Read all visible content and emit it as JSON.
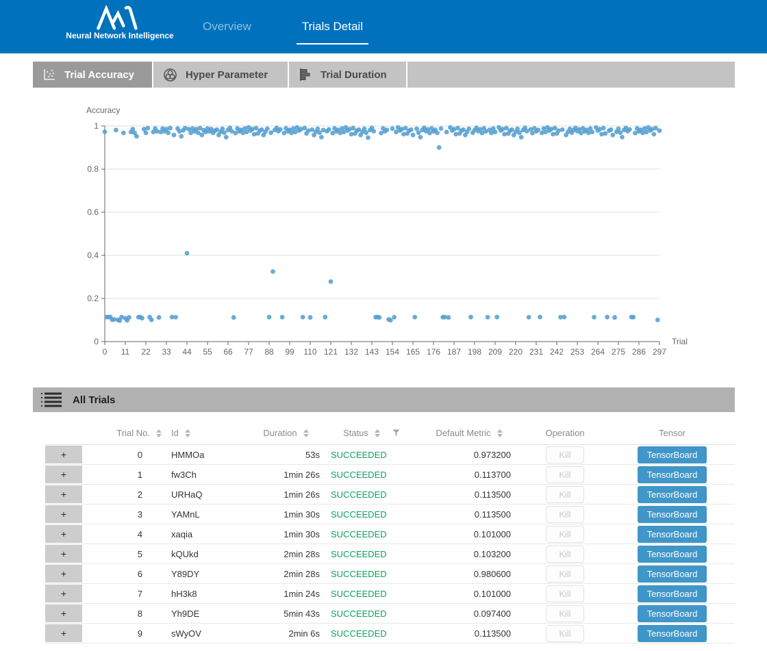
{
  "colors": {
    "header_blue": "#0071bc",
    "active_tab": "#9a9a9a",
    "inactive_tab": "#c3c3c3",
    "section_bar": "#b1b1b1",
    "point_blue": "#559fd0",
    "succeeded_green": "#0fa05c",
    "tensorboard_blue": "#4096c8"
  },
  "header": {
    "brand_subtitle": "Neural Network Intelligence",
    "nav": [
      {
        "label": "Overview",
        "active": false
      },
      {
        "label": "Trials Detail",
        "active": true
      }
    ]
  },
  "tabs": [
    {
      "label": "Trial Accuracy",
      "icon": "scatter-icon",
      "active": true
    },
    {
      "label": "Hyper Parameter",
      "icon": "venn-icon",
      "active": false
    },
    {
      "label": "Trial Duration",
      "icon": "bars-icon",
      "active": false
    }
  ],
  "chart_data": {
    "type": "scatter",
    "title": "",
    "ylabel": "Accuracy",
    "xlabel": "Trial",
    "ylim": [
      0,
      1
    ],
    "xlim": [
      0,
      297
    ],
    "grid": true,
    "legend": "none",
    "point_color": "#559fd0",
    "yticks": [
      0,
      0.2,
      0.4,
      0.6,
      0.8,
      1
    ],
    "xticks": [
      0,
      11,
      22,
      33,
      44,
      55,
      66,
      77,
      88,
      99,
      110,
      121,
      132,
      143,
      154,
      165,
      176,
      187,
      198,
      209,
      220,
      231,
      242,
      253,
      264,
      275,
      286,
      297
    ],
    "points": [
      [
        0,
        0.973
      ],
      [
        1,
        0.1137
      ],
      [
        2,
        0.1135
      ],
      [
        3,
        0.1135
      ],
      [
        4,
        0.101
      ],
      [
        5,
        0.1032
      ],
      [
        6,
        0.981
      ],
      [
        7,
        0.101
      ],
      [
        8,
        0.0974
      ],
      [
        9,
        0.1135
      ],
      [
        10,
        0.968
      ],
      [
        11,
        0.108
      ],
      [
        12,
        0.0985
      ],
      [
        13,
        0.112
      ],
      [
        14,
        0.972
      ],
      [
        15,
        0.985
      ],
      [
        16,
        0.968
      ],
      [
        17,
        0.952
      ],
      [
        18,
        0.113
      ],
      [
        19,
        0.1135
      ],
      [
        20,
        0.109
      ],
      [
        21,
        0.985
      ],
      [
        22,
        0.968
      ],
      [
        23,
        0.99
      ],
      [
        24,
        0.1135
      ],
      [
        25,
        0.101
      ],
      [
        26,
        0.972
      ],
      [
        27,
        0.988
      ],
      [
        28,
        0.975
      ],
      [
        29,
        0.112
      ],
      [
        30,
        0.972
      ],
      [
        31,
        0.988
      ],
      [
        32,
        0.975
      ],
      [
        33,
        0.985
      ],
      [
        34,
        0.968
      ],
      [
        35,
        0.99
      ],
      [
        36,
        0.1135
      ],
      [
        37,
        0.958
      ],
      [
        38,
        0.113
      ],
      [
        39,
        0.988
      ],
      [
        40,
        0.975
      ],
      [
        41,
        0.952
      ],
      [
        42,
        0.98
      ],
      [
        43,
        0.99
      ],
      [
        44,
        0.41
      ],
      [
        45,
        0.985
      ],
      [
        46,
        0.968
      ],
      [
        47,
        0.988
      ],
      [
        48,
        0.975
      ],
      [
        49,
        0.985
      ],
      [
        50,
        0.968
      ],
      [
        51,
        0.99
      ],
      [
        52,
        0.958
      ],
      [
        53,
        0.98
      ],
      [
        54,
        0.972
      ],
      [
        55,
        0.988
      ],
      [
        56,
        0.975
      ],
      [
        57,
        0.985
      ],
      [
        58,
        0.968
      ],
      [
        59,
        0.978
      ],
      [
        60,
        0.983
      ],
      [
        61,
        0.958
      ],
      [
        62,
        0.973
      ],
      [
        63,
        0.987
      ],
      [
        64,
        0.969
      ],
      [
        65,
        0.948
      ],
      [
        66,
        0.981
      ],
      [
        67,
        0.991
      ],
      [
        68,
        0.976
      ],
      [
        69,
        0.112
      ],
      [
        70,
        0.967
      ],
      [
        71,
        0.989
      ],
      [
        72,
        0.975
      ],
      [
        73,
        0.982
      ],
      [
        74,
        0.968
      ],
      [
        75,
        0.988
      ],
      [
        76,
        0.972
      ],
      [
        77,
        0.993
      ],
      [
        78,
        0.979
      ],
      [
        79,
        0.985
      ],
      [
        80,
        0.962
      ],
      [
        81,
        0.99
      ],
      [
        82,
        0.965
      ],
      [
        83,
        0.978
      ],
      [
        84,
        0.983
      ],
      [
        85,
        0.958
      ],
      [
        86,
        0.973
      ],
      [
        87,
        0.987
      ],
      [
        88,
        0.1135
      ],
      [
        89,
        0.969
      ],
      [
        90,
        0.325
      ],
      [
        91,
        0.981
      ],
      [
        92,
        0.991
      ],
      [
        93,
        0.976
      ],
      [
        94,
        0.984
      ],
      [
        95,
        0.113
      ],
      [
        96,
        0.967
      ],
      [
        97,
        0.989
      ],
      [
        98,
        0.975
      ],
      [
        99,
        0.982
      ],
      [
        100,
        0.968
      ],
      [
        101,
        0.988
      ],
      [
        102,
        0.972
      ],
      [
        103,
        0.993
      ],
      [
        104,
        0.979
      ],
      [
        105,
        0.985
      ],
      [
        106,
        0.1135
      ],
      [
        107,
        0.99
      ],
      [
        108,
        0.965
      ],
      [
        109,
        0.978
      ],
      [
        110,
        0.112
      ],
      [
        111,
        0.983
      ],
      [
        112,
        0.958
      ],
      [
        113,
        0.973
      ],
      [
        114,
        0.987
      ],
      [
        115,
        0.969
      ],
      [
        116,
        0.948
      ],
      [
        117,
        0.981
      ],
      [
        118,
        0.1135
      ],
      [
        119,
        0.976
      ],
      [
        120,
        0.984
      ],
      [
        121,
        0.278
      ],
      [
        122,
        0.967
      ],
      [
        123,
        0.989
      ],
      [
        124,
        0.975
      ],
      [
        125,
        0.982
      ],
      [
        126,
        0.968
      ],
      [
        127,
        0.988
      ],
      [
        128,
        0.972
      ],
      [
        129,
        0.993
      ],
      [
        130,
        0.979
      ],
      [
        131,
        0.985
      ],
      [
        132,
        0.962
      ],
      [
        133,
        0.99
      ],
      [
        134,
        0.965
      ],
      [
        135,
        0.978
      ],
      [
        136,
        0.983
      ],
      [
        137,
        0.958
      ],
      [
        138,
        0.973
      ],
      [
        139,
        0.987
      ],
      [
        140,
        0.969
      ],
      [
        141,
        0.946
      ],
      [
        142,
        0.981
      ],
      [
        143,
        0.991
      ],
      [
        144,
        0.976
      ],
      [
        145,
        0.113
      ],
      [
        146,
        0.1135
      ],
      [
        147,
        0.112
      ],
      [
        148,
        0.967
      ],
      [
        149,
        0.989
      ],
      [
        150,
        0.975
      ],
      [
        151,
        0.982
      ],
      [
        152,
        0.103
      ],
      [
        153,
        0.0995
      ],
      [
        154,
        0.988
      ],
      [
        155,
        0.113
      ],
      [
        156,
        0.972
      ],
      [
        157,
        0.993
      ],
      [
        158,
        0.979
      ],
      [
        159,
        0.985
      ],
      [
        160,
        0.962
      ],
      [
        161,
        0.99
      ],
      [
        162,
        0.965
      ],
      [
        163,
        0.978
      ],
      [
        164,
        0.983
      ],
      [
        165,
        0.958
      ],
      [
        166,
        0.1135
      ],
      [
        167,
        0.987
      ],
      [
        168,
        0.969
      ],
      [
        169,
        0.948
      ],
      [
        170,
        0.981
      ],
      [
        171,
        0.991
      ],
      [
        172,
        0.976
      ],
      [
        173,
        0.984
      ],
      [
        174,
        0.967
      ],
      [
        175,
        0.989
      ],
      [
        176,
        0.975
      ],
      [
        177,
        0.982
      ],
      [
        178,
        0.968
      ],
      [
        179,
        0.9
      ],
      [
        180,
        0.988
      ],
      [
        181,
        0.113
      ],
      [
        182,
        0.1135
      ],
      [
        183,
        0.972
      ],
      [
        184,
        0.112
      ],
      [
        185,
        0.993
      ],
      [
        186,
        0.979
      ],
      [
        187,
        0.985
      ],
      [
        188,
        0.962
      ],
      [
        189,
        0.99
      ],
      [
        190,
        0.965
      ],
      [
        191,
        0.978
      ],
      [
        192,
        0.983
      ],
      [
        193,
        0.958
      ],
      [
        194,
        0.973
      ],
      [
        195,
        0.987
      ],
      [
        196,
        0.1135
      ],
      [
        197,
        0.969
      ],
      [
        198,
        0.981
      ],
      [
        199,
        0.991
      ],
      [
        200,
        0.976
      ],
      [
        201,
        0.984
      ],
      [
        202,
        0.967
      ],
      [
        203,
        0.989
      ],
      [
        204,
        0.975
      ],
      [
        205,
        0.113
      ],
      [
        206,
        0.982
      ],
      [
        207,
        0.968
      ],
      [
        208,
        0.988
      ],
      [
        209,
        0.972
      ],
      [
        210,
        0.1135
      ],
      [
        211,
        0.993
      ],
      [
        212,
        0.979
      ],
      [
        213,
        0.985
      ],
      [
        214,
        0.962
      ],
      [
        215,
        0.99
      ],
      [
        216,
        0.965
      ],
      [
        217,
        0.978
      ],
      [
        218,
        0.983
      ],
      [
        219,
        0.958
      ],
      [
        220,
        0.973
      ],
      [
        221,
        0.987
      ],
      [
        222,
        0.969
      ],
      [
        223,
        0.948
      ],
      [
        224,
        0.981
      ],
      [
        225,
        0.991
      ],
      [
        226,
        0.976
      ],
      [
        227,
        0.113
      ],
      [
        228,
        0.984
      ],
      [
        229,
        0.967
      ],
      [
        230,
        0.989
      ],
      [
        231,
        0.975
      ],
      [
        232,
        0.982
      ],
      [
        233,
        0.1135
      ],
      [
        234,
        0.968
      ],
      [
        235,
        0.988
      ],
      [
        236,
        0.972
      ],
      [
        237,
        0.993
      ],
      [
        238,
        0.979
      ],
      [
        239,
        0.985
      ],
      [
        240,
        0.962
      ],
      [
        241,
        0.99
      ],
      [
        242,
        0.965
      ],
      [
        243,
        0.978
      ],
      [
        244,
        0.113
      ],
      [
        245,
        0.983
      ],
      [
        246,
        0.1135
      ],
      [
        247,
        0.958
      ],
      [
        248,
        0.973
      ],
      [
        249,
        0.987
      ],
      [
        250,
        0.969
      ],
      [
        251,
        0.981
      ],
      [
        252,
        0.991
      ],
      [
        253,
        0.976
      ],
      [
        254,
        0.984
      ],
      [
        255,
        0.967
      ],
      [
        256,
        0.989
      ],
      [
        257,
        0.975
      ],
      [
        258,
        0.982
      ],
      [
        259,
        0.968
      ],
      [
        260,
        0.988
      ],
      [
        261,
        0.972
      ],
      [
        262,
        0.113
      ],
      [
        263,
        0.993
      ],
      [
        264,
        0.979
      ],
      [
        265,
        0.985
      ],
      [
        266,
        0.962
      ],
      [
        267,
        0.99
      ],
      [
        268,
        0.965
      ],
      [
        269,
        0.1135
      ],
      [
        270,
        0.978
      ],
      [
        271,
        0.983
      ],
      [
        272,
        0.958
      ],
      [
        273,
        0.112
      ],
      [
        274,
        0.973
      ],
      [
        275,
        0.987
      ],
      [
        276,
        0.969
      ],
      [
        277,
        0.948
      ],
      [
        278,
        0.981
      ],
      [
        279,
        0.991
      ],
      [
        280,
        0.976
      ],
      [
        281,
        0.984
      ],
      [
        282,
        0.1135
      ],
      [
        283,
        0.113
      ],
      [
        284,
        0.967
      ],
      [
        285,
        0.989
      ],
      [
        286,
        0.975
      ],
      [
        287,
        0.982
      ],
      [
        288,
        0.968
      ],
      [
        289,
        0.988
      ],
      [
        290,
        0.972
      ],
      [
        291,
        0.993
      ],
      [
        292,
        0.979
      ],
      [
        293,
        0.985
      ],
      [
        294,
        0.962
      ],
      [
        295,
        0.99
      ],
      [
        296,
        0.1005
      ],
      [
        297,
        0.978
      ]
    ]
  },
  "table": {
    "section_title": "All Trials",
    "expander_symbol": "+",
    "kill_label": "Kill",
    "tensorboard_label": "TensorBoard",
    "columns": [
      {
        "label": "Trial No.",
        "sortable": true
      },
      {
        "label": "Id",
        "sortable": true
      },
      {
        "label": "Duration",
        "sortable": true
      },
      {
        "label": "Status",
        "sortable": true,
        "filterable": true
      },
      {
        "label": "Default Metric",
        "sortable": true
      },
      {
        "label": "Operation"
      },
      {
        "label": "Tensor"
      }
    ],
    "rows": [
      {
        "trial_no": "0",
        "id": "HMMOa",
        "duration": "53s",
        "status": "SUCCEEDED",
        "default_metric": "0.973200"
      },
      {
        "trial_no": "1",
        "id": "fw3Ch",
        "duration": "1min 26s",
        "status": "SUCCEEDED",
        "default_metric": "0.113700"
      },
      {
        "trial_no": "2",
        "id": "URHaQ",
        "duration": "1min 26s",
        "status": "SUCCEEDED",
        "default_metric": "0.113500"
      },
      {
        "trial_no": "3",
        "id": "YAMnL",
        "duration": "1min 30s",
        "status": "SUCCEEDED",
        "default_metric": "0.113500"
      },
      {
        "trial_no": "4",
        "id": "xaqia",
        "duration": "1min 30s",
        "status": "SUCCEEDED",
        "default_metric": "0.101000"
      },
      {
        "trial_no": "5",
        "id": "kQUkd",
        "duration": "2min 28s",
        "status": "SUCCEEDED",
        "default_metric": "0.103200"
      },
      {
        "trial_no": "6",
        "id": "Y89DY",
        "duration": "2min 28s",
        "status": "SUCCEEDED",
        "default_metric": "0.980600"
      },
      {
        "trial_no": "7",
        "id": "hH3k8",
        "duration": "1min 24s",
        "status": "SUCCEEDED",
        "default_metric": "0.101000"
      },
      {
        "trial_no": "8",
        "id": "Yh9DE",
        "duration": "5min 43s",
        "status": "SUCCEEDED",
        "default_metric": "0.097400"
      },
      {
        "trial_no": "9",
        "id": "sWyOV",
        "duration": "2min 6s",
        "status": "SUCCEEDED",
        "default_metric": "0.113500"
      }
    ]
  }
}
